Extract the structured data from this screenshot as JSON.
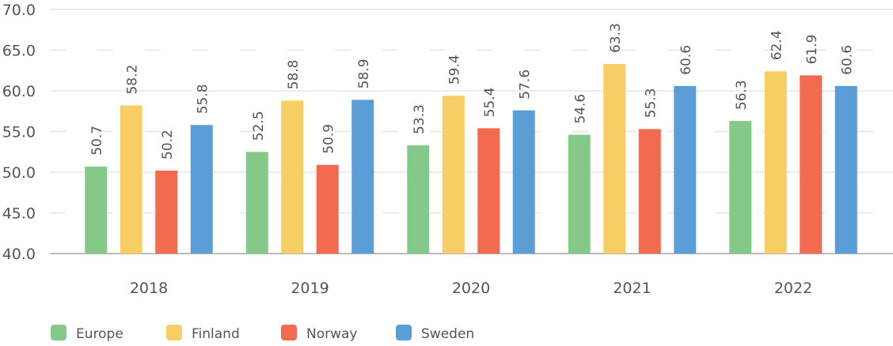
{
  "chart_data": {
    "type": "bar",
    "title": "",
    "xlabel": "",
    "ylabel": "",
    "ylim": [
      40,
      70
    ],
    "yticks": [
      "40.0",
      "45.0",
      "50.0",
      "55.0",
      "60.0",
      "65.0",
      "70.0"
    ],
    "categories": [
      "2018",
      "2019",
      "2020",
      "2021",
      "2022"
    ],
    "grid": true,
    "legend_position": "bottom-left",
    "series": [
      {
        "name": "Europe",
        "color": "#85c988",
        "values": [
          50.7,
          52.5,
          53.3,
          54.6,
          56.3
        ]
      },
      {
        "name": "Finland",
        "color": "#f7ce63",
        "values": [
          58.2,
          58.8,
          59.4,
          63.3,
          62.4
        ]
      },
      {
        "name": "Norway",
        "color": "#f26a4f",
        "values": [
          50.2,
          50.9,
          55.4,
          55.3,
          61.9
        ]
      },
      {
        "name": "Sweden",
        "color": "#5b9ed7",
        "values": [
          55.8,
          58.9,
          57.6,
          60.6,
          60.6
        ]
      }
    ]
  }
}
